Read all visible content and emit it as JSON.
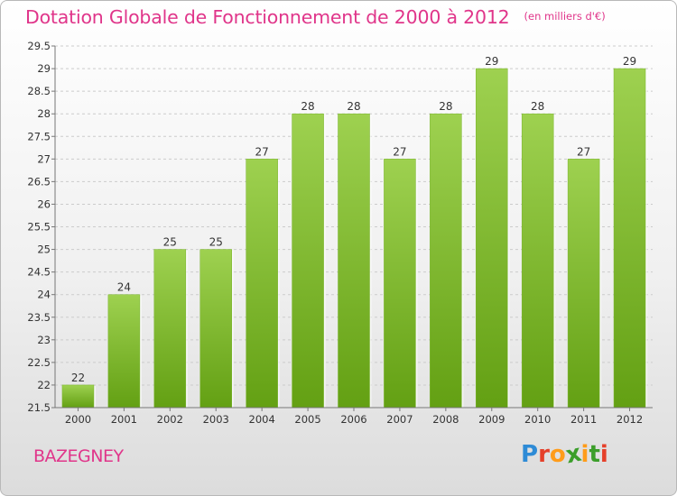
{
  "title": "Dotation Globale de Fonctionnement de 2000 à 2012",
  "unit": "(en milliers d'€)",
  "city": "BAZEGNEY",
  "logo": {
    "letters": [
      "P",
      "r",
      "o",
      "x",
      "i",
      "t",
      "i"
    ],
    "colors": [
      "#2e8bd6",
      "#e5402a",
      "#ff9c1a",
      "#3b9e2a"
    ]
  },
  "chart_data": {
    "type": "bar",
    "categories": [
      "2000",
      "2001",
      "2002",
      "2003",
      "2004",
      "2005",
      "2006",
      "2007",
      "2008",
      "2009",
      "2010",
      "2011",
      "2012"
    ],
    "values": [
      22,
      24,
      25,
      25,
      27,
      28,
      28,
      27,
      28,
      29,
      28,
      27,
      29
    ],
    "data_labels": [
      "22",
      "24",
      "25",
      "25",
      "27",
      "28",
      "28",
      "27",
      "28",
      "29",
      "28",
      "27",
      "29"
    ],
    "ylim": [
      21.5,
      29.5
    ],
    "yticks": [
      21.5,
      22,
      22.5,
      23,
      23.5,
      24,
      24.5,
      25,
      25.5,
      26,
      26.5,
      27,
      27.5,
      28,
      28.5,
      29,
      29.5
    ],
    "ytick_labels": [
      "21.5",
      "22",
      "22.5",
      "23",
      "23.5",
      "24",
      "24.5",
      "25",
      "25.5",
      "26",
      "26.5",
      "27",
      "27.5",
      "28",
      "28.5",
      "29",
      "29.5"
    ],
    "grid": true,
    "bar_color": "#8cc63f"
  }
}
